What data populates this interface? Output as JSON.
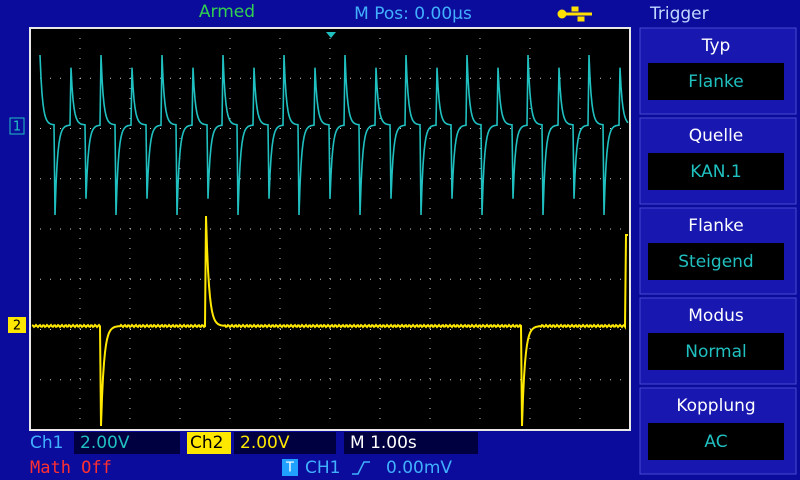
{
  "status": "Armed",
  "m_pos": "M Pos: 0.00µs",
  "menu": {
    "title": "Trigger",
    "items": [
      {
        "label": "Typ",
        "value": "Flanke"
      },
      {
        "label": "Quelle",
        "value": "KAN.1"
      },
      {
        "label": "Flanke",
        "value": "Steigend"
      },
      {
        "label": "Modus",
        "value": "Normal"
      },
      {
        "label": "Kopplung",
        "value": "AC"
      }
    ]
  },
  "channels": [
    {
      "label": "Ch1",
      "scale": "2.00V"
    },
    {
      "label": "Ch2",
      "scale": "2.00V"
    }
  ],
  "timebase": "M 1.00s",
  "math": "Math Off",
  "trigger": {
    "icon": "T",
    "source": "CH1",
    "level": "0.00mV"
  },
  "markers": [
    "1",
    "2"
  ]
}
